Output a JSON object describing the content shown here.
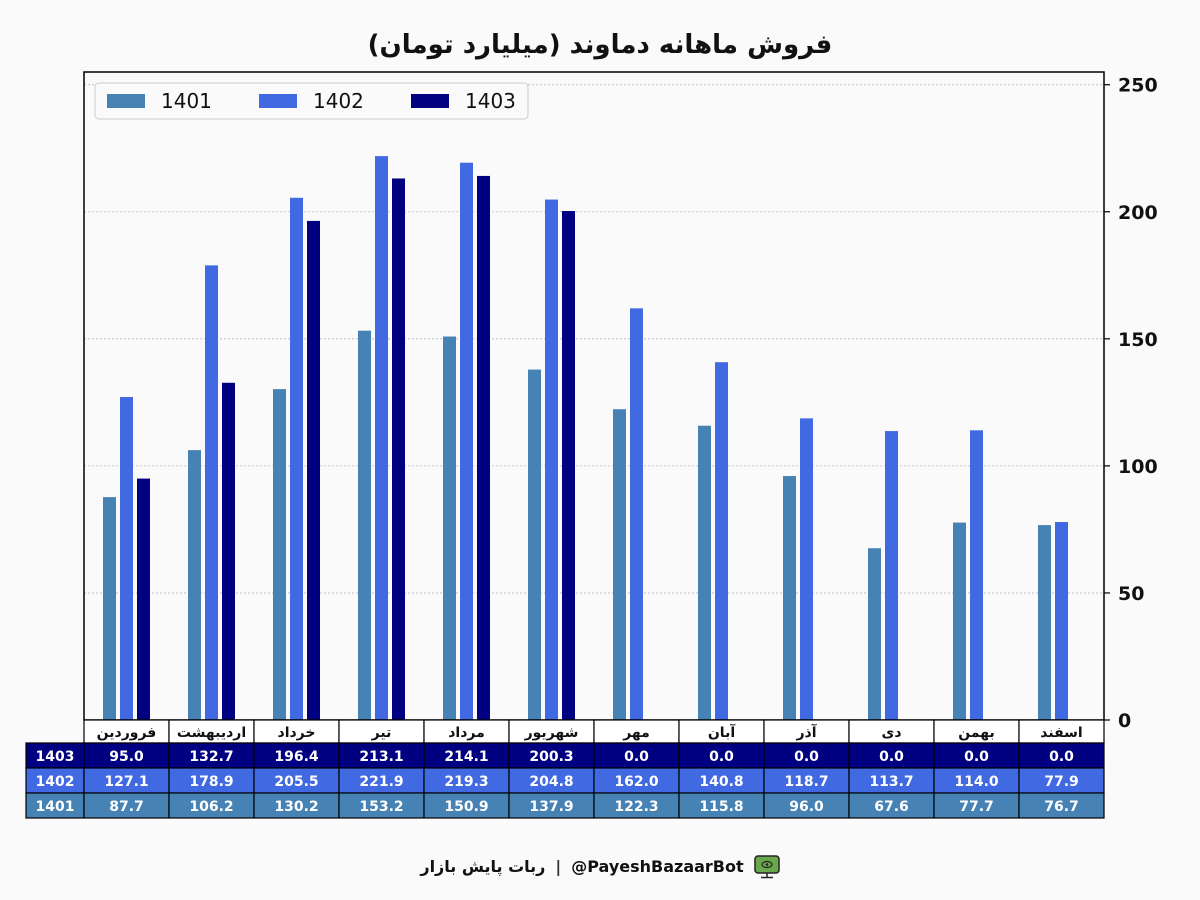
{
  "title": "فروش ماهانه دماوند (میلیارد تومان)",
  "footer": {
    "bot_handle": "@PayeshBazaarBot",
    "separator": "|",
    "bot_name": "ربات پایش بازار"
  },
  "colors": {
    "1401": "#4682b4",
    "1402": "#4169e1",
    "1403": "#000080"
  },
  "chart_data": {
    "type": "bar",
    "title": "فروش ماهانه دماوند (میلیارد تومان)",
    "categories": [
      "فروردین",
      "اردیبهشت",
      "خرداد",
      "تیر",
      "مرداد",
      "شهریور",
      "مهر",
      "آبان",
      "آذر",
      "دی",
      "بهمن",
      "اسفند"
    ],
    "series": [
      {
        "name": "1401",
        "color": "#4682b4",
        "values": [
          87.7,
          106.2,
          130.2,
          153.2,
          150.9,
          137.9,
          122.3,
          115.8,
          96.0,
          67.6,
          77.7,
          76.7
        ]
      },
      {
        "name": "1402",
        "color": "#4169e1",
        "values": [
          127.1,
          178.9,
          205.5,
          221.9,
          219.3,
          204.8,
          162.0,
          140.8,
          118.7,
          113.7,
          114.0,
          77.9
        ]
      },
      {
        "name": "1403",
        "color": "#000080",
        "values": [
          95.0,
          132.7,
          196.4,
          213.1,
          214.1,
          200.3,
          0.0,
          0.0,
          0.0,
          0.0,
          0.0,
          0.0
        ]
      }
    ],
    "table_rows": [
      {
        "label": "1403",
        "values": [
          "95.0",
          "132.7",
          "196.4",
          "213.1",
          "214.1",
          "200.3",
          "0.0",
          "0.0",
          "0.0",
          "0.0",
          "0.0",
          "0.0"
        ]
      },
      {
        "label": "1402",
        "values": [
          "127.1",
          "178.9",
          "205.5",
          "221.9",
          "219.3",
          "204.8",
          "162.0",
          "140.8",
          "118.7",
          "113.7",
          "114.0",
          "77.9"
        ]
      },
      {
        "label": "1401",
        "values": [
          "87.7",
          "106.2",
          "130.2",
          "153.2",
          "150.9",
          "137.9",
          "122.3",
          "115.8",
          "96.0",
          "67.6",
          "77.7",
          "76.7"
        ]
      }
    ],
    "yticks": [
      0,
      50,
      100,
      150,
      200,
      250
    ],
    "ylim": [
      0,
      255
    ],
    "y_axis_side": "right",
    "grid": true,
    "legend": {
      "placement": "top-left",
      "entries": [
        "1401",
        "1402",
        "1403"
      ]
    }
  }
}
